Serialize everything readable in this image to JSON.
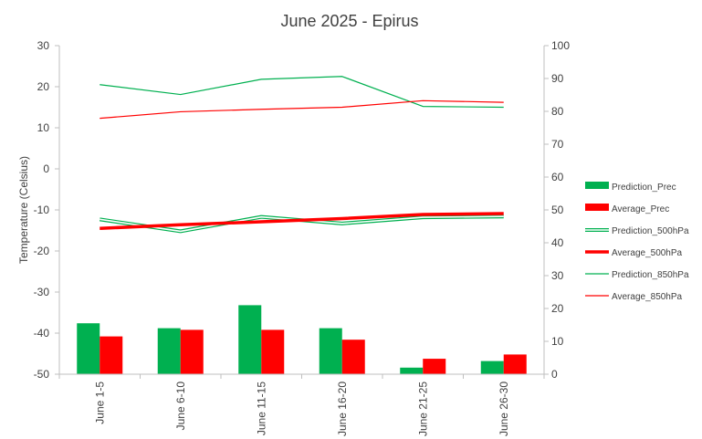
{
  "chart_data": {
    "type": "bar",
    "title": "June 2025 - Epirus",
    "ylabel": "Temperature (Celsius)",
    "y2label": "",
    "categories": [
      "June 1-5",
      "June 6-10",
      "June 11-15",
      "June 16-20",
      "June 21-25",
      "June 26-30"
    ],
    "ylim": [
      -50,
      30
    ],
    "y2lim": [
      0,
      100
    ],
    "yticks": [
      "30",
      "20",
      "10",
      "0",
      "-10",
      "-20",
      "-30",
      "-40",
      "-50"
    ],
    "y2ticks": [
      "100",
      "90",
      "80",
      "70",
      "60",
      "50",
      "40",
      "30",
      "20",
      "10",
      "0"
    ],
    "grid": false,
    "legend_position": "right",
    "series": [
      {
        "name": "Prediction_Prec",
        "kind": "bar",
        "axis": "secondary",
        "color": "#00b050",
        "values": [
          15.5,
          14,
          21,
          14,
          2,
          4
        ]
      },
      {
        "name": "Average_Prec",
        "kind": "bar",
        "axis": "secondary",
        "color": "#ff0000",
        "values": [
          11.5,
          13.5,
          13.5,
          10.5,
          4.7,
          6
        ]
      },
      {
        "name": "Prediction_500hPa",
        "kind": "line",
        "style": "double",
        "axis": "primary",
        "color": "#00b050",
        "values": [
          -12.3,
          -15.2,
          -11.7,
          -13.3,
          -11.8,
          -11.6
        ]
      },
      {
        "name": "Average_500hPa",
        "kind": "line",
        "style": "thick",
        "axis": "primary",
        "color": "#ff0000",
        "values": [
          -14.5,
          -13.6,
          -12.9,
          -12.1,
          -11.1,
          -10.9
        ]
      },
      {
        "name": "Prediction_850hPa",
        "kind": "line",
        "style": "thin",
        "axis": "primary",
        "color": "#00b050",
        "values": [
          20.5,
          18.1,
          21.8,
          22.5,
          15.2,
          15.0
        ]
      },
      {
        "name": "Average_850hPa",
        "kind": "line",
        "style": "thin",
        "axis": "primary",
        "color": "#ff0000",
        "values": [
          12.3,
          13.9,
          14.5,
          15.0,
          16.6,
          16.2
        ]
      }
    ]
  }
}
